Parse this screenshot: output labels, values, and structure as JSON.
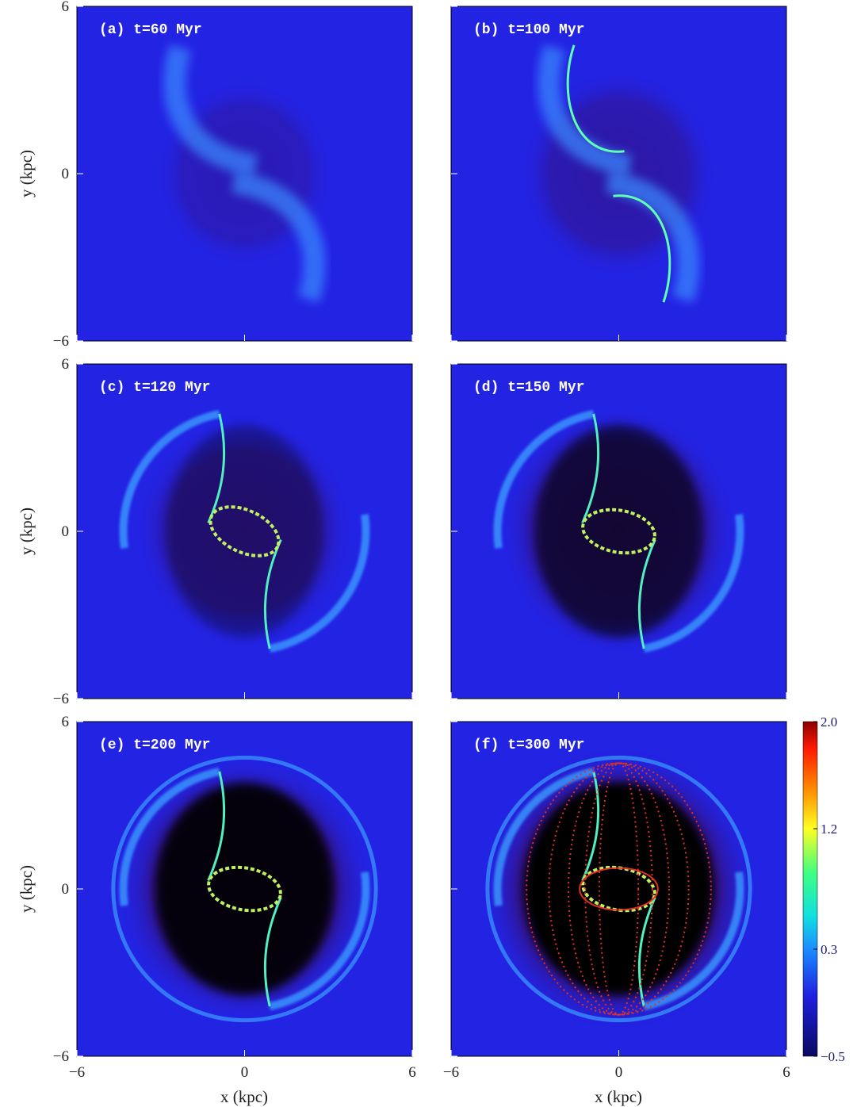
{
  "axes": {
    "xlim": [
      -6,
      6
    ],
    "ylim": [
      -6,
      6
    ],
    "xticks": [
      {
        "value": -6,
        "label": "−6"
      },
      0,
      6
    ],
    "yticks": [
      {
        "value": -6,
        "label": "−6"
      },
      0,
      6
    ],
    "xlabel": "x (kpc)",
    "ylabel": "y (kpc)"
  },
  "chart_data": [
    {
      "type": "image",
      "title": "(a) t=60 Myr"
    },
    {
      "type": "image",
      "title": "(b) t=100 Myr"
    },
    {
      "type": "image",
      "title": "(c) t=120 Myr"
    },
    {
      "type": "image",
      "title": "(d) t=150 Myr"
    },
    {
      "type": "image",
      "title": "(e) t=200 Myr"
    },
    {
      "type": "image",
      "title": "(f) t=300 Myr",
      "clim": [
        -0.5,
        2.0
      ],
      "cticks": [
        {
          "value": 2.0,
          "label": "2.0"
        },
        {
          "value": 1.2,
          "label": "1.2"
        },
        {
          "value": 0.3,
          "label": "0.3"
        },
        {
          "value": -0.5,
          "label": "−0.5"
        }
      ]
    }
  ]
}
